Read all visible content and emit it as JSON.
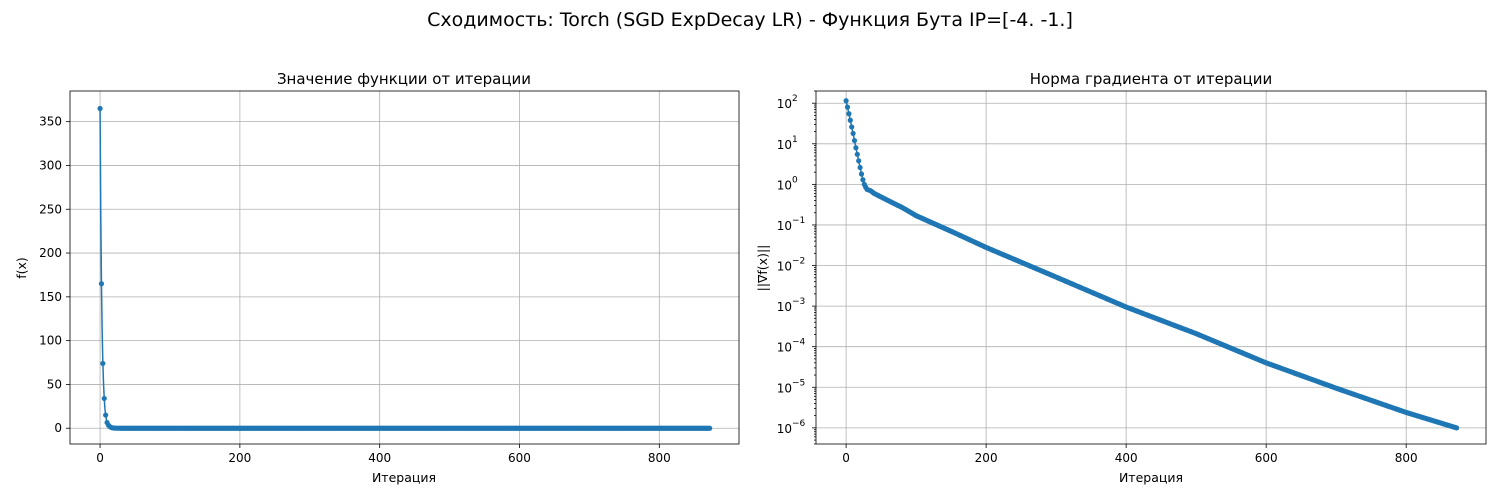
{
  "suptitle": "Сходимость: Torch (SGD ExpDecay LR) - Функция Бута IP=[-4. -1.]",
  "colors": {
    "series": "#1f77b4",
    "grid": "#b0b0b0"
  },
  "chart_data": [
    {
      "type": "line",
      "title": "Значение функции от итерации",
      "xlabel": "Итерация",
      "ylabel": "f(x)",
      "yscale": "linear",
      "grid": true,
      "xlim": [
        -43,
        914
      ],
      "ylim": [
        -18,
        385
      ],
      "xticks": [
        0,
        200,
        400,
        600,
        800
      ],
      "xtick_labels": [
        "0",
        "200",
        "400",
        "600",
        "800"
      ],
      "yticks": [
        0,
        50,
        100,
        150,
        200,
        250,
        300,
        350
      ],
      "ytick_labels": [
        "0",
        "50",
        "100",
        "150",
        "200",
        "250",
        "300",
        "350"
      ],
      "series": [
        {
          "name": "f(x)",
          "x": [
            0,
            1,
            2,
            3,
            4,
            5,
            6,
            7,
            8,
            9,
            10,
            12,
            14,
            16,
            18,
            20,
            25,
            30,
            40,
            60,
            80,
            100,
            150,
            200,
            300,
            400,
            500,
            600,
            700,
            800,
            872
          ],
          "y": [
            365,
            245,
            165,
            111,
            74,
            50,
            34,
            22,
            15,
            10,
            6.5,
            3.5,
            1.8,
            0.9,
            0.4,
            0.2,
            0.05,
            0.01,
            0.001,
            0,
            0,
            0,
            0,
            0,
            0,
            0,
            0,
            0,
            0,
            0,
            0
          ]
        }
      ]
    },
    {
      "type": "line",
      "title": "Норма градиента от итерации",
      "xlabel": "Итерация",
      "ylabel": "||∇f(x)||",
      "yscale": "log",
      "grid": true,
      "xlim": [
        -43,
        914
      ],
      "ylim": [
        4e-07,
        200
      ],
      "xticks": [
        0,
        200,
        400,
        600,
        800
      ],
      "xtick_labels": [
        "0",
        "200",
        "400",
        "600",
        "800"
      ],
      "yticks": [
        1e-06,
        1e-05,
        0.0001,
        0.001,
        0.01,
        0.1,
        1,
        10,
        100
      ],
      "ytick_labels": [
        {
          "base": "10",
          "exp": "−6"
        },
        {
          "base": "10",
          "exp": "−5"
        },
        {
          "base": "10",
          "exp": "−4"
        },
        {
          "base": "10",
          "exp": "−3"
        },
        {
          "base": "10",
          "exp": "−2"
        },
        {
          "base": "10",
          "exp": "−1"
        },
        {
          "base": "10",
          "exp": "0"
        },
        {
          "base": "10",
          "exp": "1"
        },
        {
          "base": "10",
          "exp": "2"
        }
      ],
      "series": [
        {
          "name": "||∇f(x)||",
          "x": [
            0,
            2,
            4,
            6,
            8,
            10,
            12,
            14,
            16,
            18,
            20,
            22,
            24,
            26,
            28,
            30,
            35,
            40,
            60,
            80,
            100,
            150,
            200,
            300,
            400,
            500,
            600,
            700,
            800,
            872
          ],
          "y": [
            115,
            80,
            55,
            38,
            26,
            18,
            12,
            8,
            5.5,
            3.8,
            2.6,
            1.8,
            1.3,
            1.0,
            0.85,
            0.75,
            0.7,
            0.6,
            0.4,
            0.27,
            0.17,
            0.07,
            0.028,
            0.0052,
            0.00095,
            0.00021,
            4e-05,
            9.5e-06,
            2.4e-06,
            1e-06
          ]
        }
      ]
    }
  ]
}
